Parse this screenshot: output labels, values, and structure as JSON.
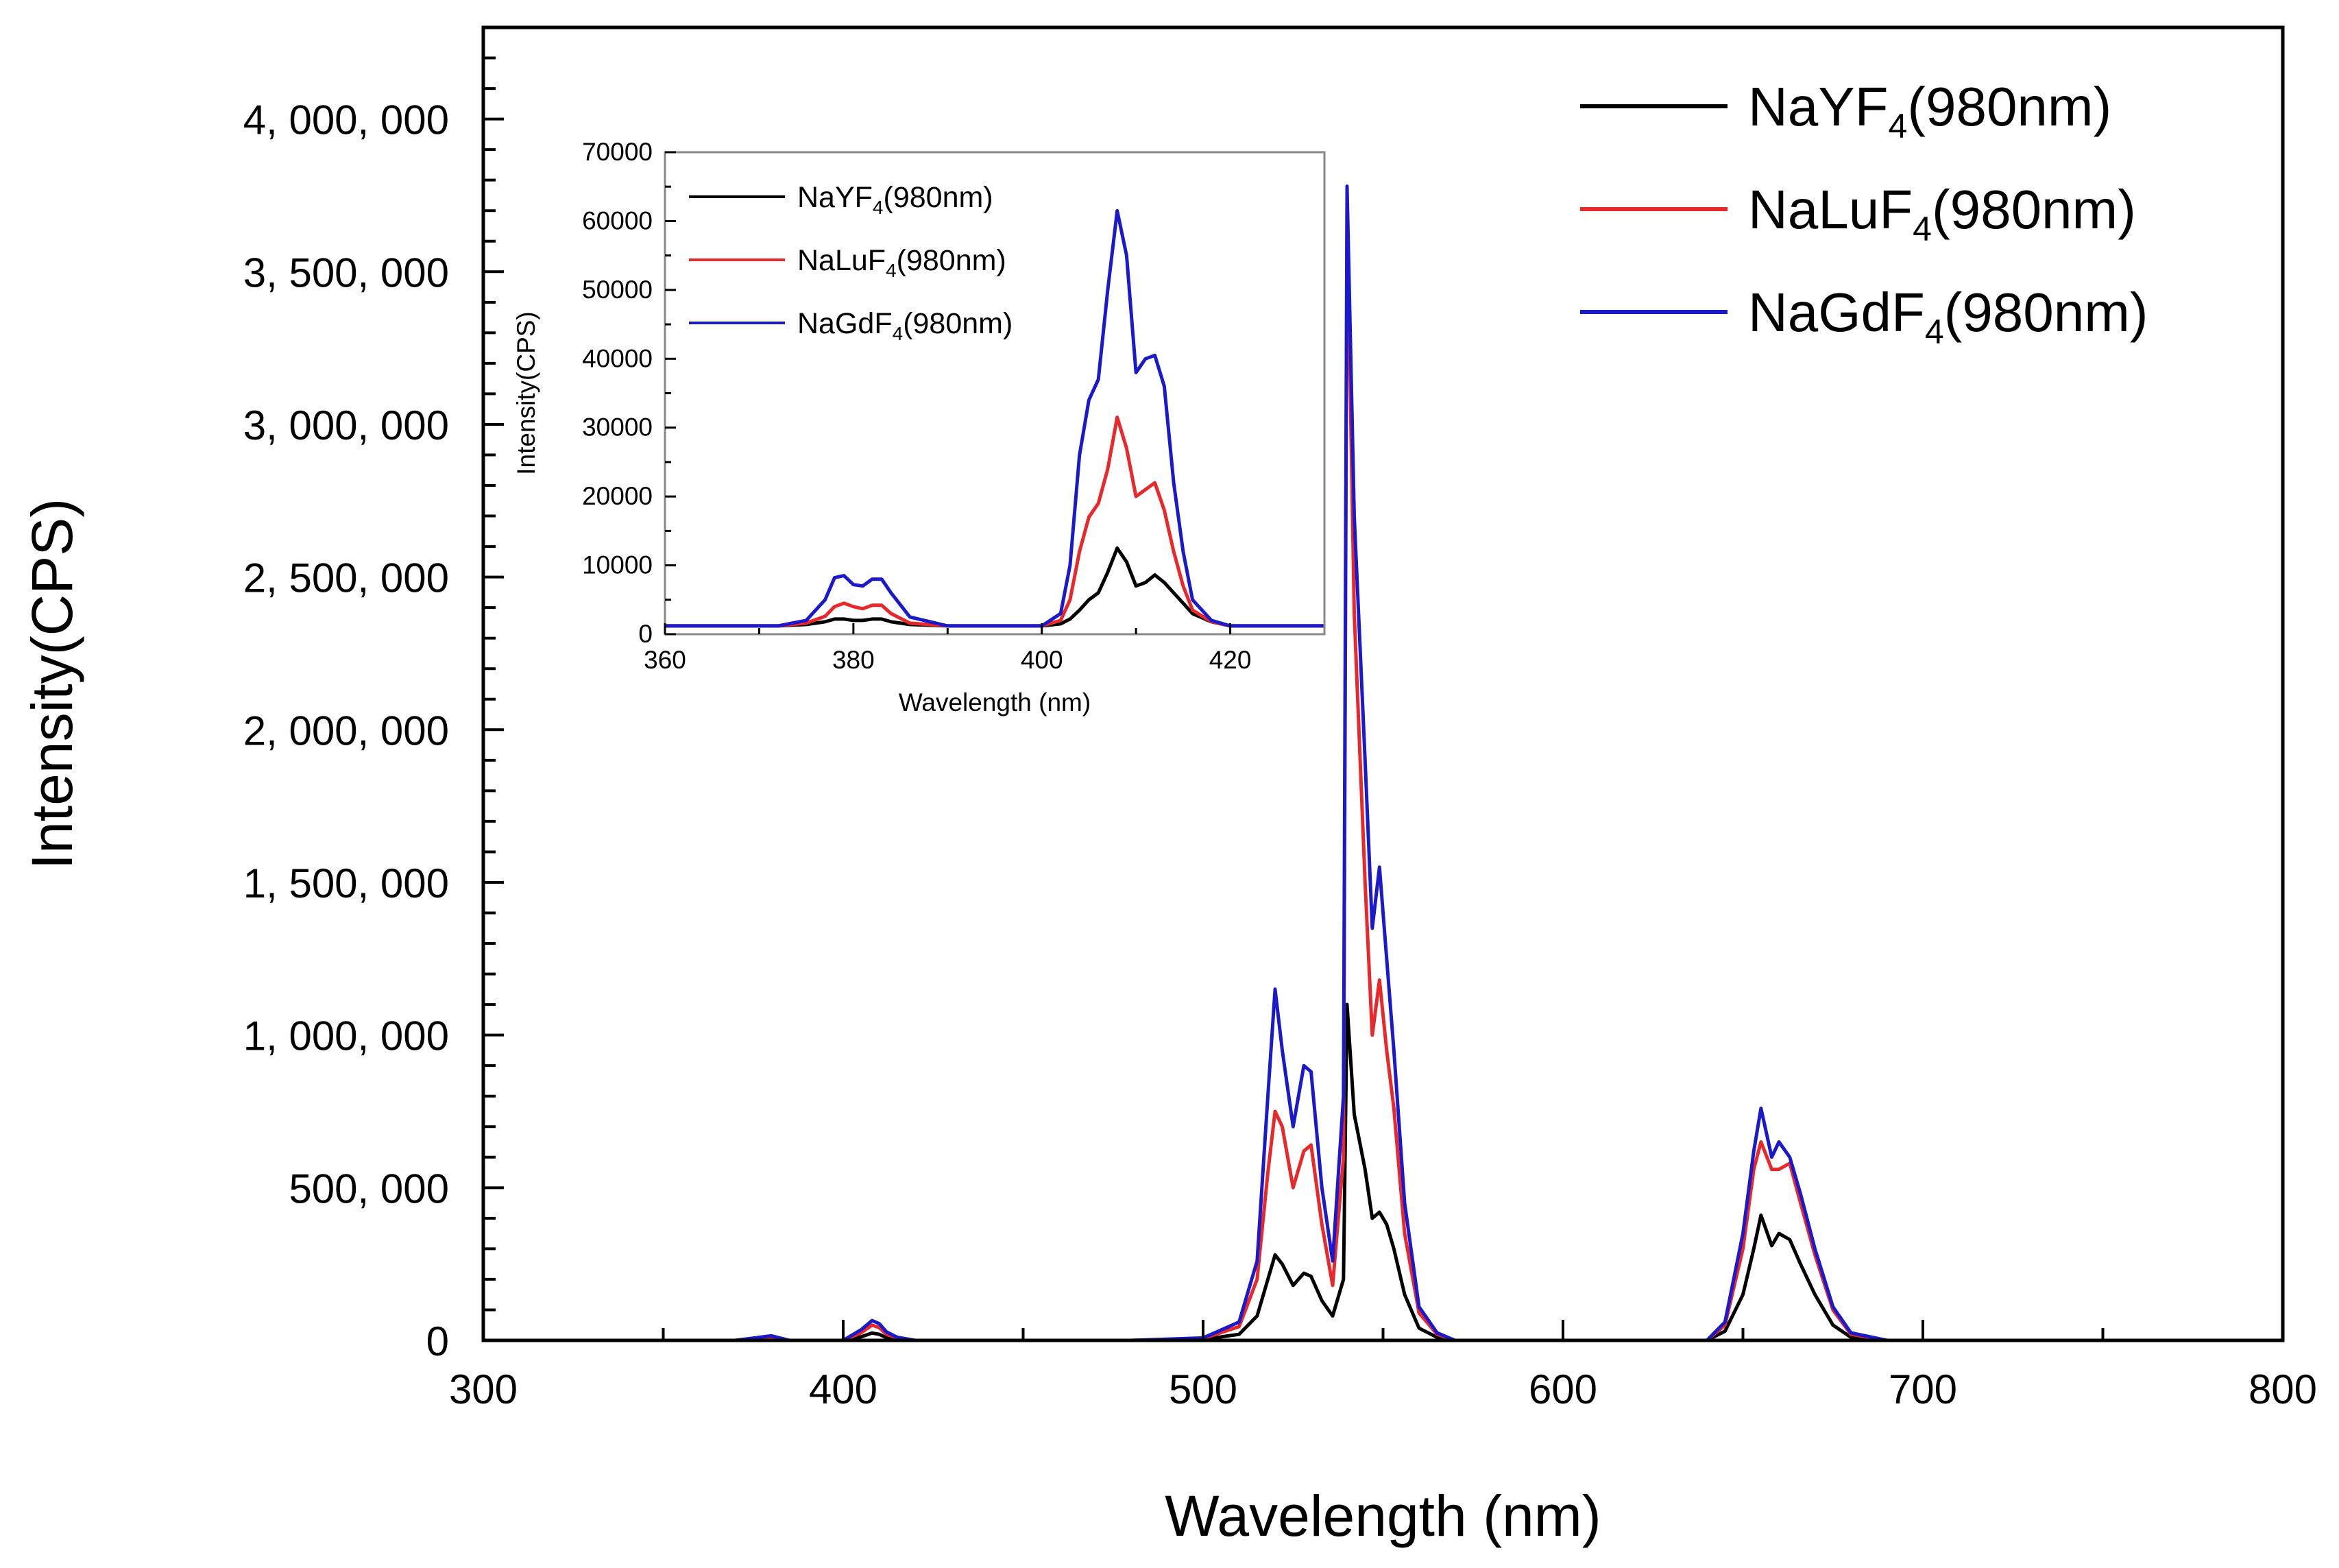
{
  "chart_data": [
    {
      "type": "line",
      "title": "",
      "xlabel": "Wavelength (nm)",
      "ylabel": "Intensity(CPS)",
      "xlim": [
        300,
        800
      ],
      "ylim": [
        0,
        4300000
      ],
      "xticks": [
        300,
        400,
        500,
        600,
        700,
        800
      ],
      "xtick_labels": [
        "300",
        "400",
        "500",
        "600",
        "700",
        "800"
      ],
      "yticks": [
        0,
        500000,
        1000000,
        1500000,
        2000000,
        2500000,
        3000000,
        3500000,
        4000000
      ],
      "ytick_labels": [
        "0",
        "500, 000",
        "1, 000, 000",
        "1, 500, 000",
        "2, 000, 000",
        "2, 500, 000",
        "3, 000, 000",
        "3, 500, 000",
        "4, 000, 000"
      ],
      "grid": false,
      "legend_position": "top-right",
      "series": [
        {
          "name": "NaYF4(980nm)",
          "legend_main": "NaYF",
          "legend_sub": "4",
          "legend_tail": "(980nm)",
          "color": "#000000",
          "x": [
            300,
            370,
            380,
            385,
            400,
            405,
            408,
            410,
            412,
            415,
            420,
            480,
            500,
            510,
            515,
            518,
            520,
            522,
            525,
            528,
            530,
            533,
            536,
            539,
            540,
            542,
            545,
            547,
            549,
            551,
            553,
            556,
            560,
            565,
            570,
            640,
            645,
            650,
            653,
            655,
            658,
            660,
            663,
            666,
            670,
            675,
            680,
            690,
            800
          ],
          "values": [
            0,
            0,
            6000,
            0,
            0,
            12000,
            24000,
            20000,
            9000,
            4000,
            0,
            0,
            3000,
            20000,
            80000,
            200000,
            280000,
            250000,
            180000,
            220000,
            210000,
            130000,
            80000,
            200000,
            1100000,
            740000,
            560000,
            400000,
            420000,
            380000,
            300000,
            150000,
            40000,
            10000,
            0,
            0,
            30000,
            150000,
            300000,
            410000,
            310000,
            350000,
            330000,
            250000,
            150000,
            50000,
            10000,
            0,
            0
          ]
        },
        {
          "name": "NaLuF4(980nm)",
          "legend_main": "NaLuF",
          "legend_sub": "4",
          "legend_tail": "(980nm)",
          "color": "#e8282a",
          "x": [
            300,
            370,
            380,
            385,
            400,
            405,
            408,
            410,
            412,
            415,
            420,
            480,
            500,
            510,
            515,
            518,
            520,
            522,
            525,
            528,
            530,
            533,
            536,
            539,
            540,
            542,
            545,
            547,
            549,
            551,
            553,
            556,
            560,
            565,
            570,
            640,
            645,
            650,
            653,
            655,
            658,
            660,
            663,
            666,
            670,
            675,
            680,
            690,
            800
          ],
          "values": [
            0,
            0,
            10000,
            0,
            0,
            25000,
            50000,
            42000,
            20000,
            8000,
            0,
            0,
            6000,
            45000,
            200000,
            550000,
            750000,
            700000,
            500000,
            620000,
            640000,
            380000,
            180000,
            600000,
            3700000,
            2380000,
            1500000,
            1000000,
            1180000,
            950000,
            760000,
            350000,
            90000,
            20000,
            0,
            0,
            50000,
            300000,
            560000,
            650000,
            560000,
            560000,
            580000,
            450000,
            280000,
            100000,
            20000,
            0,
            0
          ]
        },
        {
          "name": "NaGdF4(980nm)",
          "legend_main": "NaGdF",
          "legend_sub": "4",
          "legend_tail": "(980nm)",
          "color": "#1a1acc",
          "x": [
            300,
            370,
            380,
            385,
            400,
            405,
            408,
            410,
            412,
            415,
            420,
            480,
            500,
            510,
            515,
            518,
            520,
            522,
            525,
            528,
            530,
            533,
            536,
            539,
            540,
            542,
            545,
            547,
            549,
            551,
            553,
            556,
            560,
            565,
            570,
            640,
            645,
            650,
            653,
            655,
            658,
            660,
            663,
            666,
            670,
            675,
            680,
            690,
            800
          ],
          "values": [
            0,
            0,
            15000,
            0,
            0,
            35000,
            65000,
            55000,
            28000,
            10000,
            0,
            0,
            8000,
            60000,
            260000,
            800000,
            1150000,
            950000,
            700000,
            900000,
            880000,
            500000,
            260000,
            800000,
            3780000,
            2700000,
            1900000,
            1350000,
            1550000,
            1250000,
            950000,
            450000,
            110000,
            25000,
            0,
            0,
            60000,
            350000,
            620000,
            760000,
            600000,
            650000,
            600000,
            480000,
            300000,
            110000,
            25000,
            0,
            0
          ]
        }
      ]
    },
    {
      "type": "line",
      "title": "",
      "xlabel": "Wavelength (nm)",
      "ylabel": "Intensity(CPS)",
      "xlim": [
        360,
        430
      ],
      "ylim": [
        0,
        70000
      ],
      "xticks": [
        360,
        380,
        400,
        420
      ],
      "xtick_labels": [
        "360",
        "380",
        "400",
        "420"
      ],
      "yticks": [
        0,
        10000,
        20000,
        30000,
        40000,
        50000,
        60000,
        70000
      ],
      "ytick_labels": [
        "0",
        "10000",
        "20000",
        "30000",
        "40000",
        "50000",
        "60000",
        "70000"
      ],
      "grid": false,
      "legend_position": "top-left",
      "series": [
        {
          "name": "NaYF4(980nm)",
          "legend_main": "NaYF",
          "legend_sub": "4",
          "legend_tail": "(980nm)",
          "color": "#000000",
          "x": [
            360,
            372,
            375,
            377,
            378,
            379,
            380,
            381,
            382,
            383,
            384,
            386,
            390,
            400,
            402,
            403,
            404,
            405,
            406,
            407,
            408,
            409,
            410,
            411,
            412,
            413,
            414,
            415,
            416,
            418,
            420,
            430
          ],
          "values": [
            1200,
            1200,
            1400,
            1800,
            2200,
            2200,
            2000,
            2000,
            2200,
            2200,
            1800,
            1400,
            1200,
            1200,
            1500,
            2200,
            3500,
            5000,
            6000,
            9000,
            12500,
            10500,
            7000,
            7500,
            8600,
            7500,
            6000,
            4500,
            3000,
            1800,
            1200,
            1200
          ]
        },
        {
          "name": "NaLuF4(980nm)",
          "legend_main": "NaLuF",
          "legend_sub": "4",
          "legend_tail": "(980nm)",
          "color": "#e8282a",
          "x": [
            360,
            372,
            375,
            377,
            378,
            379,
            380,
            381,
            382,
            383,
            384,
            386,
            390,
            400,
            402,
            403,
            404,
            405,
            406,
            407,
            408,
            409,
            410,
            411,
            412,
            413,
            414,
            415,
            416,
            418,
            420,
            430
          ],
          "values": [
            1200,
            1200,
            1600,
            2600,
            4000,
            4500,
            4000,
            3700,
            4200,
            4200,
            3000,
            1600,
            1200,
            1200,
            2000,
            5000,
            12000,
            17000,
            19000,
            24000,
            31500,
            27000,
            20000,
            21000,
            22000,
            18000,
            12000,
            7000,
            3500,
            1800,
            1200,
            1200
          ]
        },
        {
          "name": "NaGdF4(980nm)",
          "legend_main": "NaGdF",
          "legend_sub": "4",
          "legend_tail": "(980nm)",
          "color": "#1a1acc",
          "x": [
            360,
            372,
            375,
            377,
            378,
            379,
            380,
            381,
            382,
            383,
            384,
            386,
            390,
            400,
            402,
            403,
            404,
            405,
            406,
            407,
            408,
            409,
            410,
            411,
            412,
            413,
            414,
            415,
            416,
            418,
            420,
            430
          ],
          "values": [
            1200,
            1200,
            2000,
            5000,
            8200,
            8500,
            7200,
            7000,
            8000,
            8000,
            6000,
            2500,
            1200,
            1200,
            3000,
            10000,
            26000,
            34000,
            37000,
            50000,
            61500,
            55000,
            38000,
            40000,
            40500,
            36000,
            22000,
            12000,
            5000,
            2000,
            1200,
            1200
          ]
        }
      ]
    }
  ]
}
